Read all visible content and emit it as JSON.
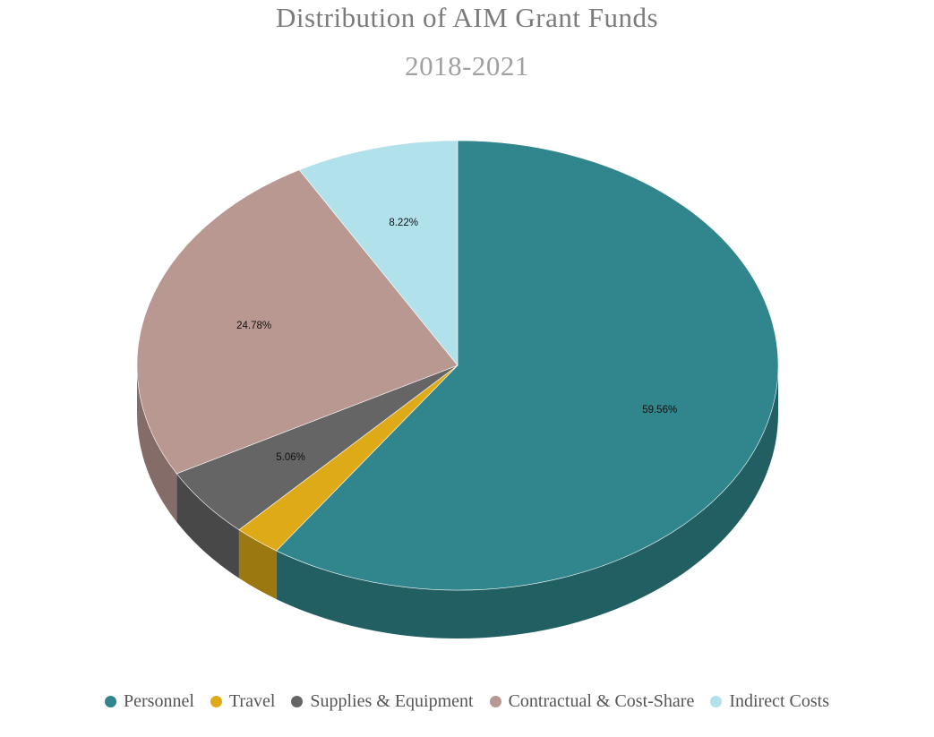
{
  "chart_data": {
    "type": "pie",
    "style": "3d",
    "title": "Distribution of AIM Grant Funds",
    "subtitle": "2018-2021",
    "legend_position": "bottom",
    "slices": [
      {
        "label": "Personnel",
        "value": 59.56,
        "display": "59.56%",
        "color": "#30868c",
        "side_color": "#225f63"
      },
      {
        "label": "Travel",
        "value": 2.38,
        "display": "",
        "color": "#deaa17",
        "side_color": "#9c7810"
      },
      {
        "label": "Supplies & Equipment",
        "value": 5.06,
        "display": "5.06%",
        "color": "#656565",
        "side_color": "#484848"
      },
      {
        "label": "Contractual & Cost-Share",
        "value": 24.78,
        "display": "24.78%",
        "color": "#b89891",
        "side_color": "#846d68"
      },
      {
        "label": "Indirect Costs",
        "value": 8.22,
        "display": "8.22%",
        "color": "#b1e2ec",
        "side_color": "#7fa3aa"
      }
    ]
  }
}
